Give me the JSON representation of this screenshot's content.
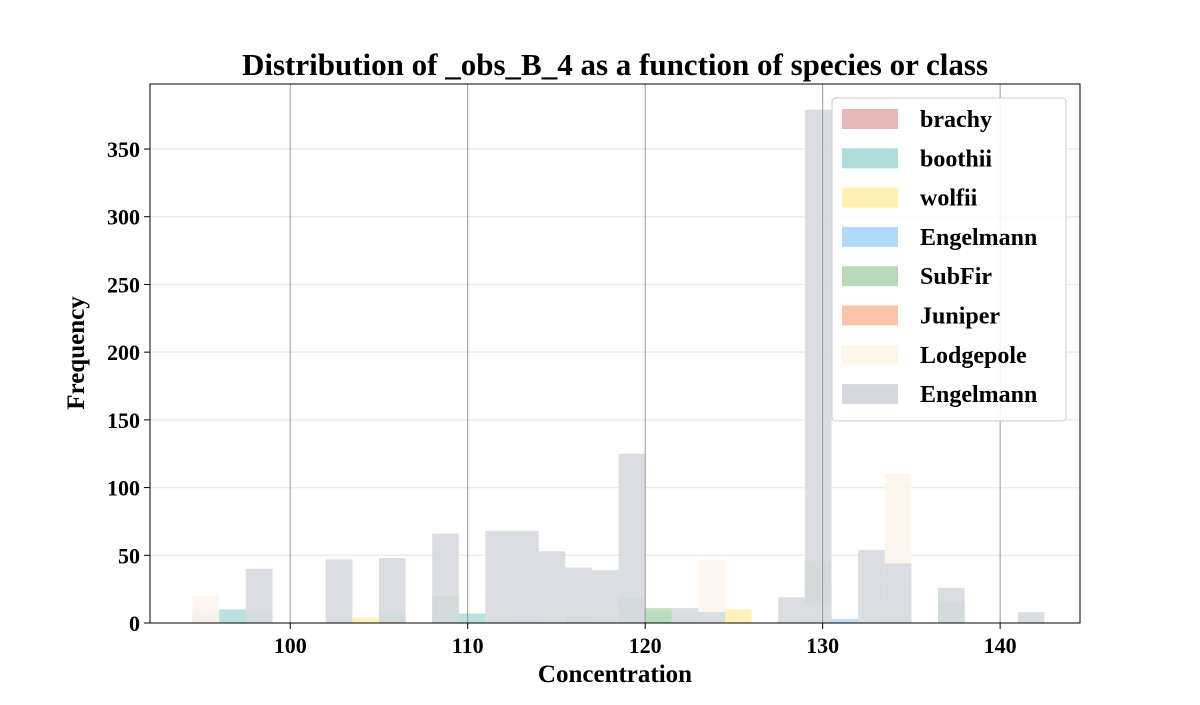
{
  "chart_data": {
    "type": "histogram",
    "title": "Distribution of _obs_B_4 as a function of species or class",
    "xlabel": "Concentration",
    "ylabel": "Frequency",
    "xlim": [
      92.1,
      144.5
    ],
    "ylim": [
      0,
      398
    ],
    "xticks": [
      100,
      110,
      120,
      130,
      140
    ],
    "yticks": [
      0,
      50,
      100,
      150,
      200,
      250,
      300,
      350
    ],
    "bin_width": 1.5,
    "grid": {
      "x": true,
      "y": true
    },
    "legend_position": "top-right",
    "series": [
      {
        "name": "brachy",
        "color": "#e6b8b8",
        "bins": [
          [
            94.5,
            3
          ],
          [
            105,
            1
          ],
          [
            129,
            2
          ],
          [
            133.5,
            1
          ]
        ]
      },
      {
        "name": "boothii",
        "color": "#b0dcdc",
        "bins": [
          [
            94.5,
            8
          ],
          [
            96,
            10
          ],
          [
            97.5,
            6
          ],
          [
            105,
            8
          ],
          [
            109.5,
            7
          ],
          [
            118.5,
            19
          ],
          [
            120,
            8
          ],
          [
            129,
            28
          ],
          [
            133.5,
            30
          ],
          [
            136.5,
            16
          ]
        ]
      },
      {
        "name": "wolfii",
        "color": "#fef0b0",
        "bins": [
          [
            102,
            3
          ],
          [
            103.5,
            4
          ],
          [
            105,
            3
          ],
          [
            117,
            3
          ],
          [
            121.5,
            4
          ],
          [
            124.5,
            10
          ],
          [
            129,
            5
          ],
          [
            133.5,
            5
          ]
        ]
      },
      {
        "name": "Engelmann",
        "color": "#b3d9fa",
        "bins": [
          [
            111,
            3
          ],
          [
            112.5,
            2
          ],
          [
            129,
            22
          ],
          [
            130.5,
            3
          ]
        ]
      },
      {
        "name": "SubFir",
        "color": "#b8dab8",
        "bins": [
          [
            105,
            3
          ],
          [
            108,
            20
          ],
          [
            115.5,
            5
          ],
          [
            118.5,
            14
          ],
          [
            120,
            11
          ],
          [
            129,
            46
          ],
          [
            133.5,
            12
          ],
          [
            136.5,
            14
          ]
        ]
      },
      {
        "name": "Juniper",
        "color": "#fdc3a8",
        "bins": [
          [
            94.5,
            2
          ],
          [
            129,
            3
          ]
        ]
      },
      {
        "name": "Lodgepole",
        "color": "#fef5eb",
        "bins": [
          [
            94.5,
            20
          ],
          [
            102,
            2
          ],
          [
            111,
            26
          ],
          [
            114,
            37
          ],
          [
            117,
            4
          ],
          [
            121.5,
            3
          ],
          [
            123,
            47
          ],
          [
            127.5,
            5
          ],
          [
            129,
            14
          ],
          [
            133.5,
            110
          ]
        ]
      },
      {
        "name": "Engelmann",
        "color": "#d5d9df",
        "bins": [
          [
            97.5,
            40
          ],
          [
            102,
            47
          ],
          [
            105,
            48
          ],
          [
            108,
            66
          ],
          [
            111,
            68
          ],
          [
            112.5,
            68
          ],
          [
            114,
            53
          ],
          [
            115.5,
            41
          ],
          [
            117,
            39
          ],
          [
            118.5,
            125
          ],
          [
            121.5,
            11
          ],
          [
            123,
            8
          ],
          [
            127.5,
            19
          ],
          [
            129,
            379
          ],
          [
            132,
            54
          ],
          [
            133.5,
            44
          ],
          [
            136.5,
            26
          ],
          [
            141,
            8
          ]
        ]
      }
    ]
  }
}
